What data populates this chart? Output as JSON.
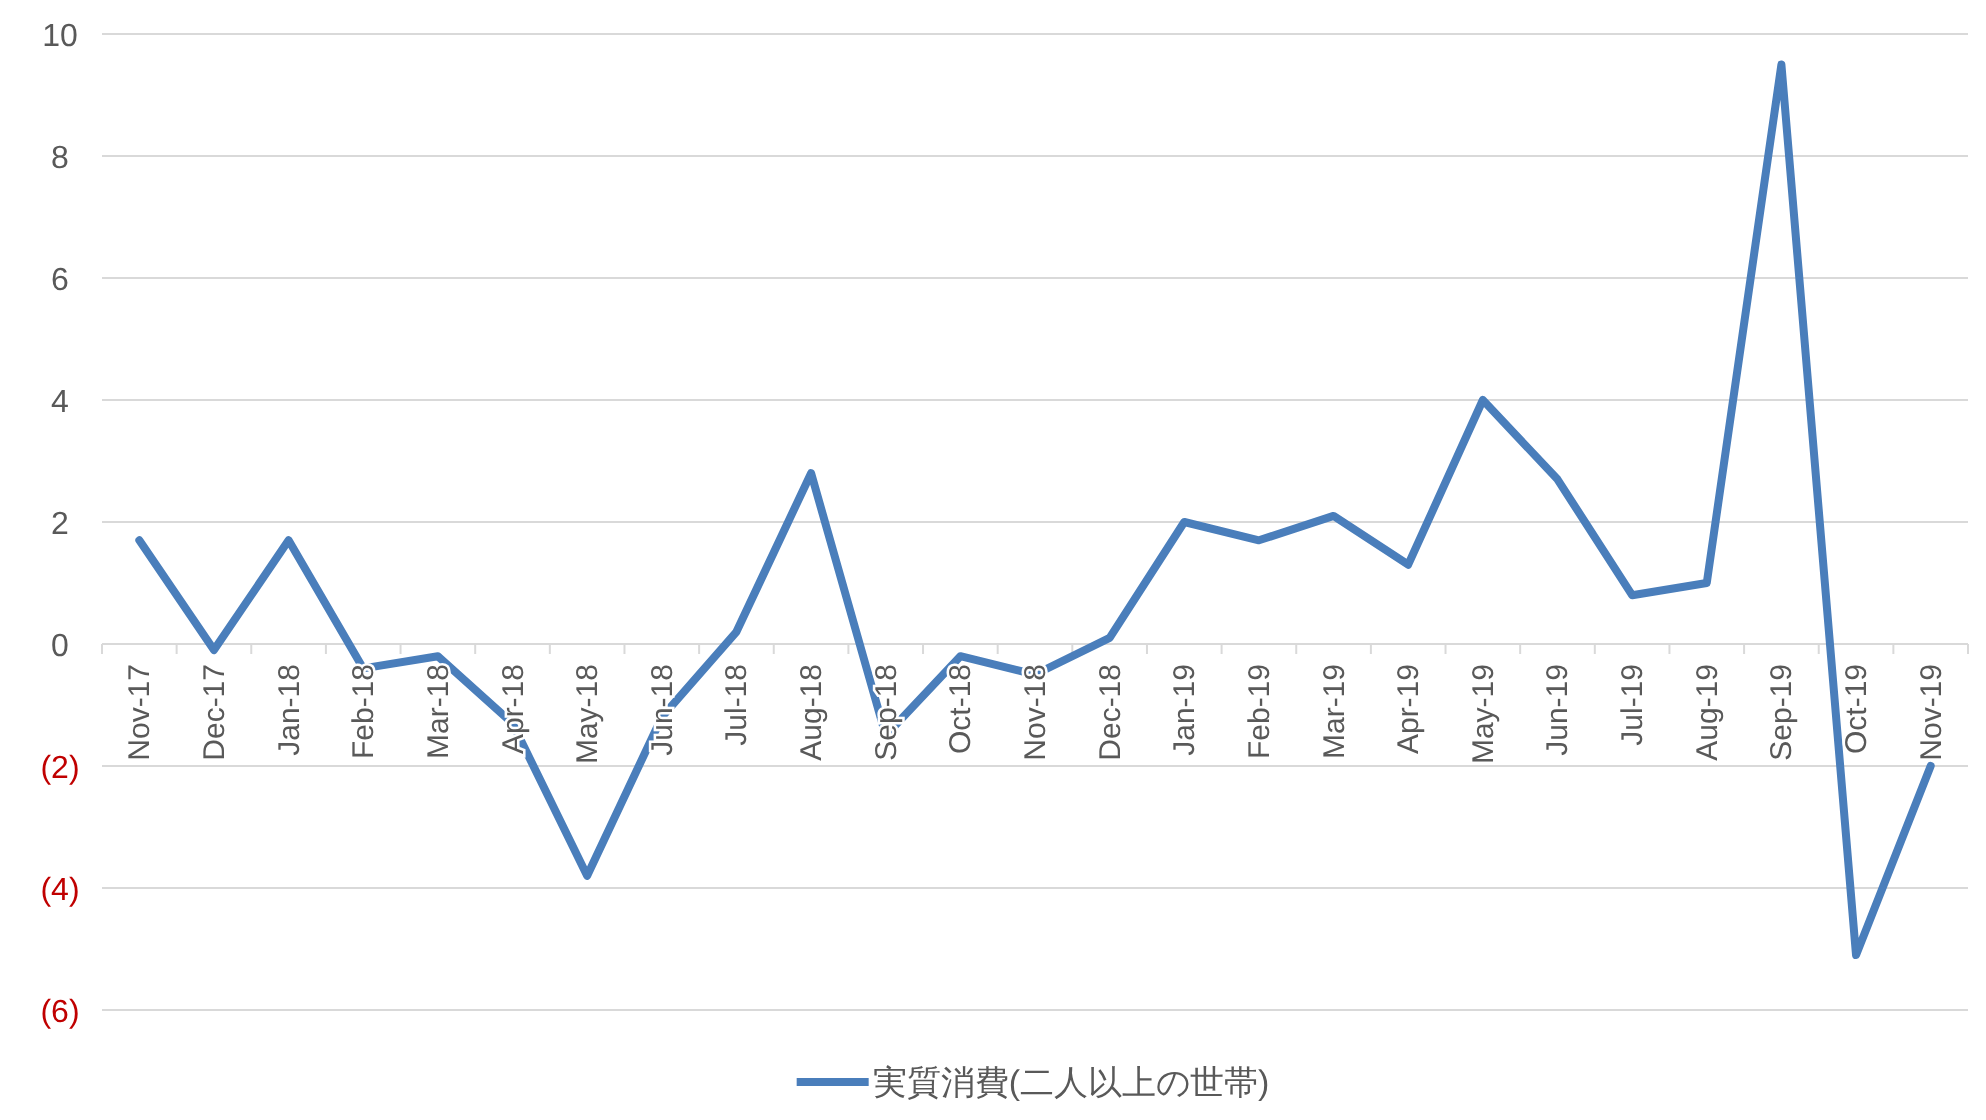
{
  "chart_data": {
    "type": "line",
    "categories": [
      "Nov-17",
      "Dec-17",
      "Jan-18",
      "Feb-18",
      "Mar-18",
      "Apr-18",
      "May-18",
      "Jun-18",
      "Jul-18",
      "Aug-18",
      "Sep-18",
      "Oct-18",
      "Nov-18",
      "Dec-18",
      "Jan-19",
      "Feb-19",
      "Mar-19",
      "Apr-19",
      "May-19",
      "Jun-19",
      "Jul-19",
      "Aug-19",
      "Sep-19",
      "Oct-19",
      "Nov-19"
    ],
    "series": [
      {
        "name": "実質消費(二人以上の世帯)",
        "color": "#4a7ebb",
        "values": [
          1.7,
          -0.1,
          1.7,
          -0.4,
          -0.2,
          -1.3,
          -3.8,
          -1.2,
          0.2,
          2.8,
          -1.5,
          -0.2,
          -0.5,
          0.1,
          2.0,
          1.7,
          2.1,
          1.3,
          4.0,
          2.7,
          0.8,
          1.0,
          9.5,
          -5.1,
          -2.0
        ]
      }
    ],
    "ylim": [
      -6,
      10
    ],
    "yticks": [
      {
        "value": -6,
        "label": "(6)"
      },
      {
        "value": -4,
        "label": "(4)"
      },
      {
        "value": -2,
        "label": "(2)"
      },
      0,
      2,
      4,
      6,
      8,
      10
    ],
    "grid": "y",
    "legend": "bottom",
    "marker": "none",
    "line_style": "solid"
  }
}
